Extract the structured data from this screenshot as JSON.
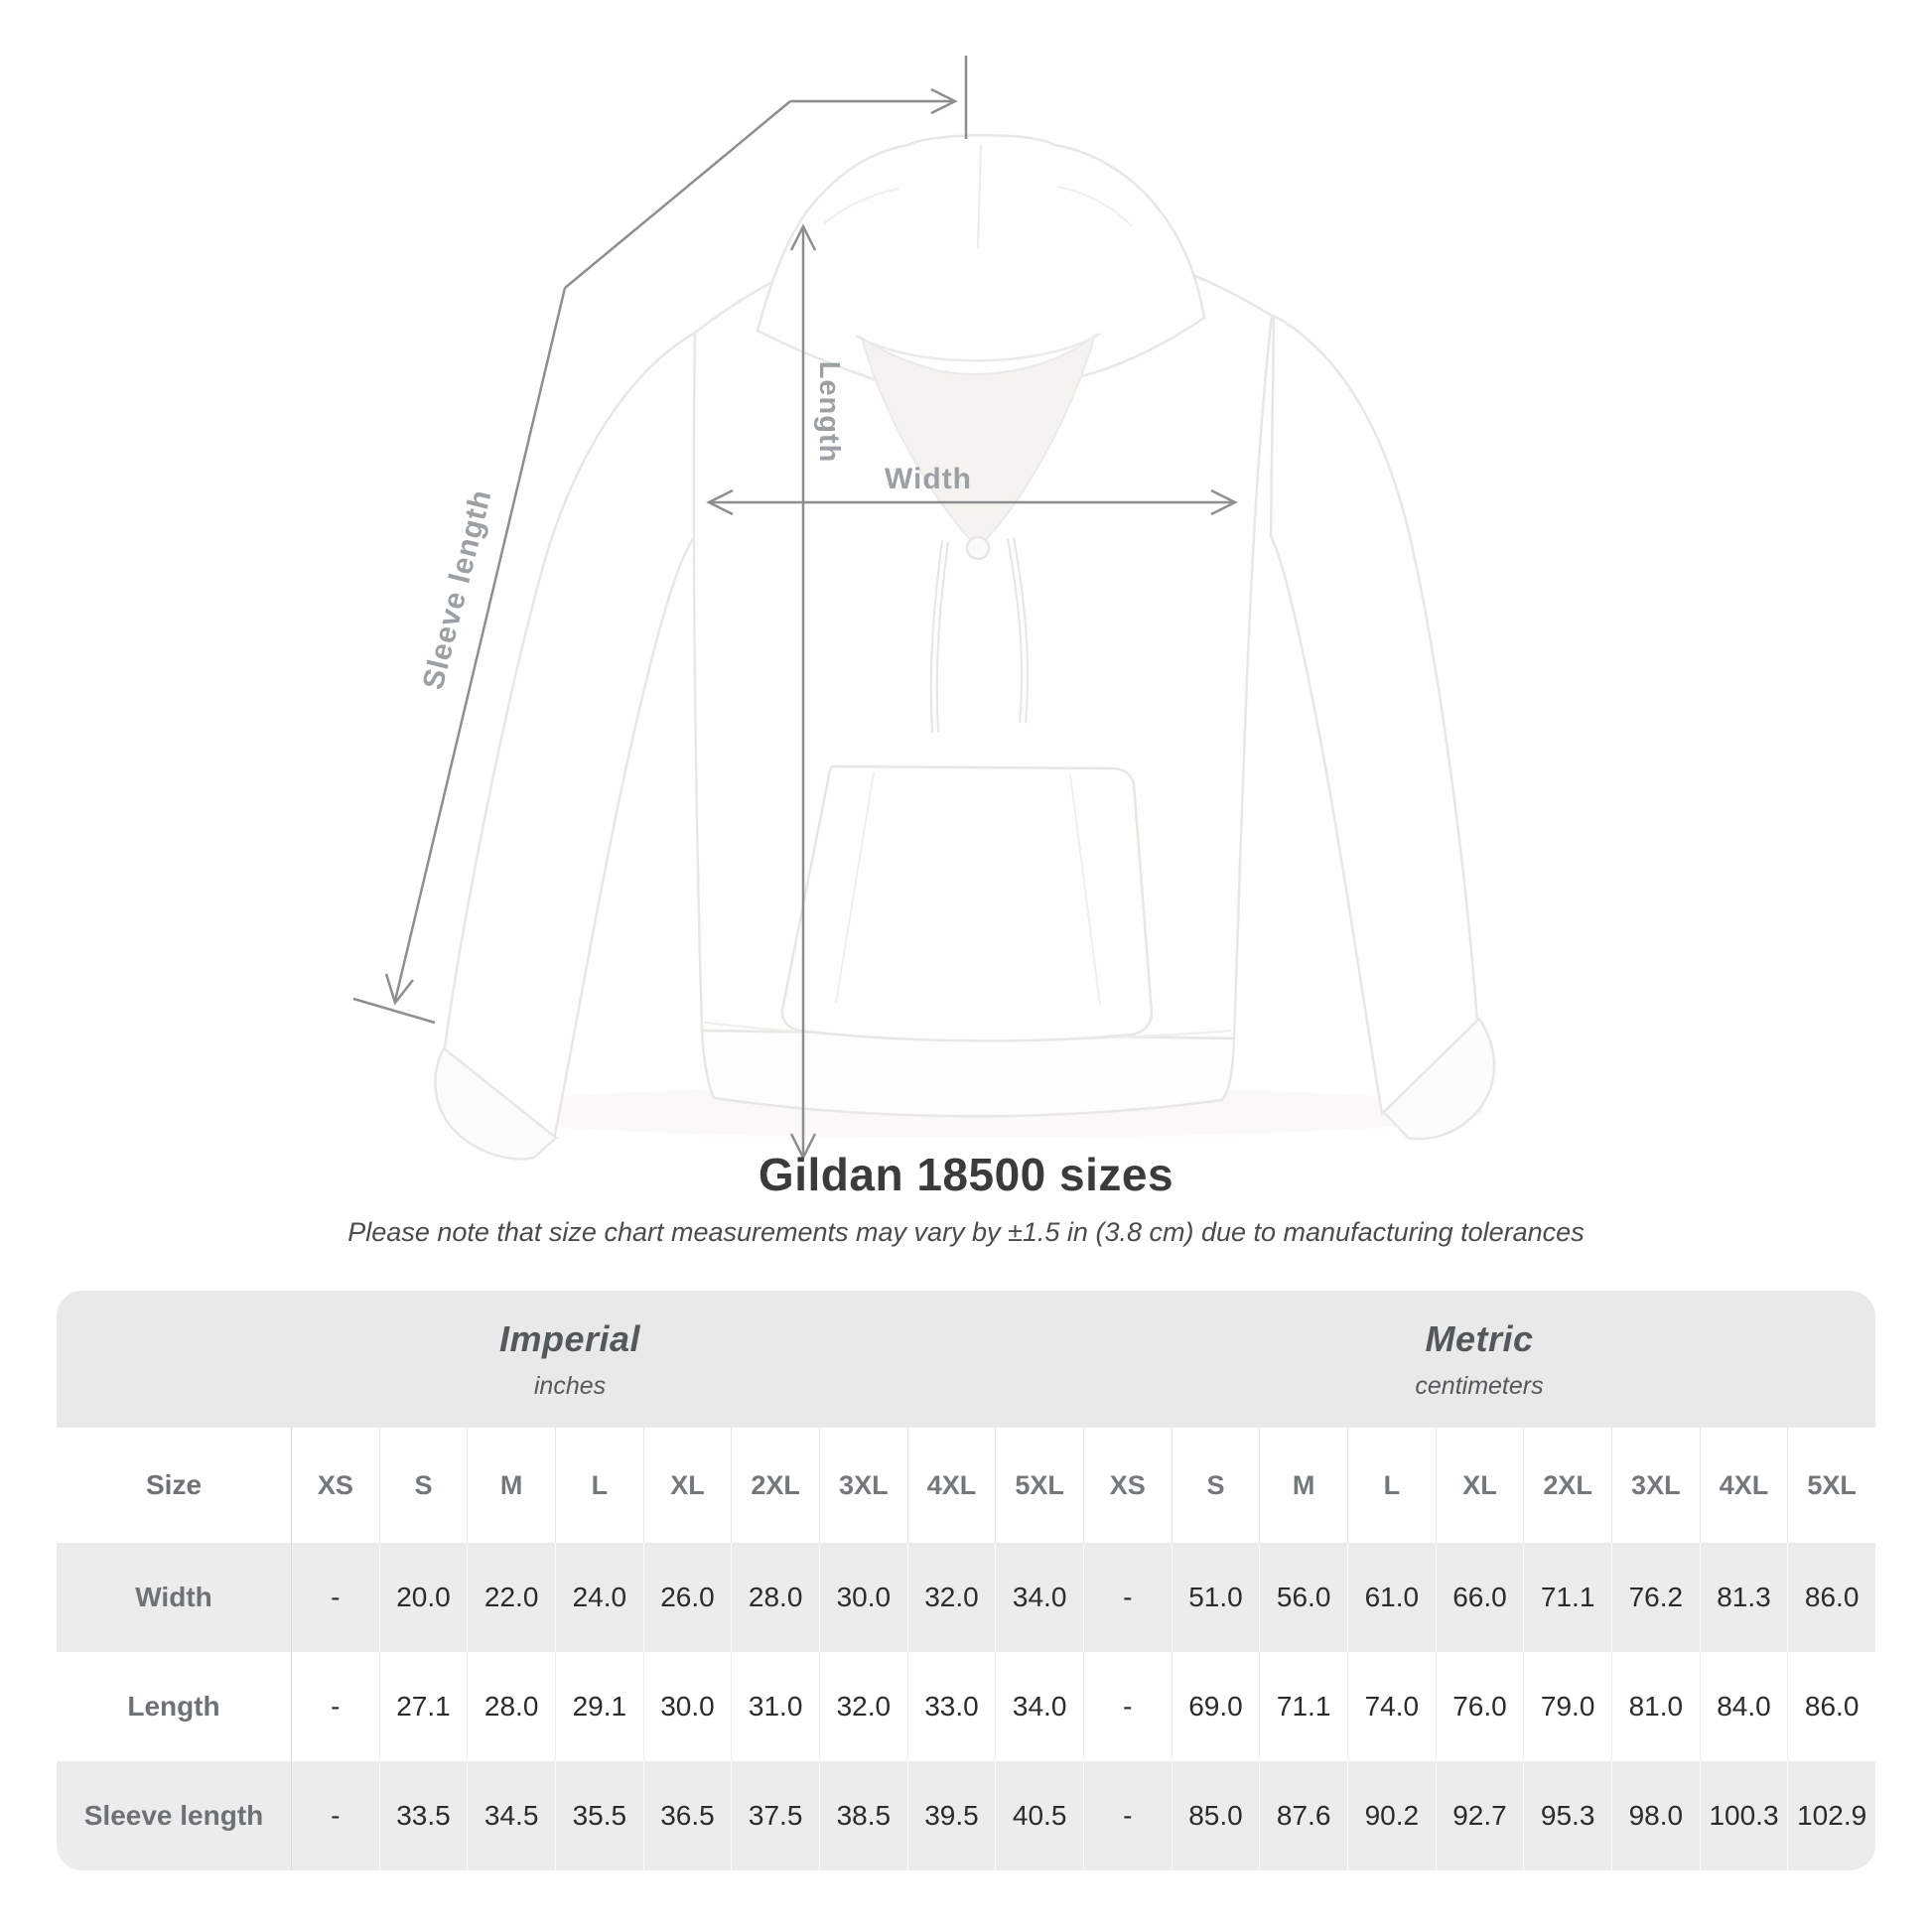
{
  "diagram": {
    "length_label": "Length",
    "width_label": "Width",
    "sleeve_label": "Sleeve length"
  },
  "chart_data": {
    "type": "table",
    "title": "Gildan 18500 sizes",
    "note": "Please note that size chart measurements may vary by ±1.5 in (3.8 cm) due to manufacturing tolerances",
    "size_header": "Size",
    "unit_groups": [
      {
        "label": "Imperial",
        "sublabel": "inches"
      },
      {
        "label": "Metric",
        "sublabel": "centimeters"
      }
    ],
    "sizes": [
      "XS",
      "S",
      "M",
      "L",
      "XL",
      "2XL",
      "3XL",
      "4XL",
      "5XL"
    ],
    "rows": [
      {
        "label": "Width",
        "imperial": [
          "-",
          "20.0",
          "22.0",
          "24.0",
          "26.0",
          "28.0",
          "30.0",
          "32.0",
          "34.0"
        ],
        "metric": [
          "-",
          "51.0",
          "56.0",
          "61.0",
          "66.0",
          "71.1",
          "76.2",
          "81.3",
          "86.0"
        ]
      },
      {
        "label": "Length",
        "imperial": [
          "-",
          "27.1",
          "28.0",
          "29.1",
          "30.0",
          "31.0",
          "32.0",
          "33.0",
          "34.0"
        ],
        "metric": [
          "-",
          "69.0",
          "71.1",
          "74.0",
          "76.0",
          "79.0",
          "81.0",
          "84.0",
          "86.0"
        ]
      },
      {
        "label": "Sleeve length",
        "imperial": [
          "-",
          "33.5",
          "34.5",
          "35.5",
          "36.5",
          "37.5",
          "38.5",
          "39.5",
          "40.5"
        ],
        "metric": [
          "-",
          "85.0",
          "87.6",
          "90.2",
          "92.7",
          "95.3",
          "98.0",
          "100.3",
          "102.9"
        ]
      }
    ]
  },
  "colors": {
    "background": "#ffffff",
    "band_background": "#e9e9e9",
    "row_shade": "#ececec",
    "dimension_line": "#8c8e90",
    "diagram_label": "#9aa0a4",
    "title_text": "#3b3b3d",
    "value_text": "#2b2b2b",
    "header_text": "#73787c"
  }
}
